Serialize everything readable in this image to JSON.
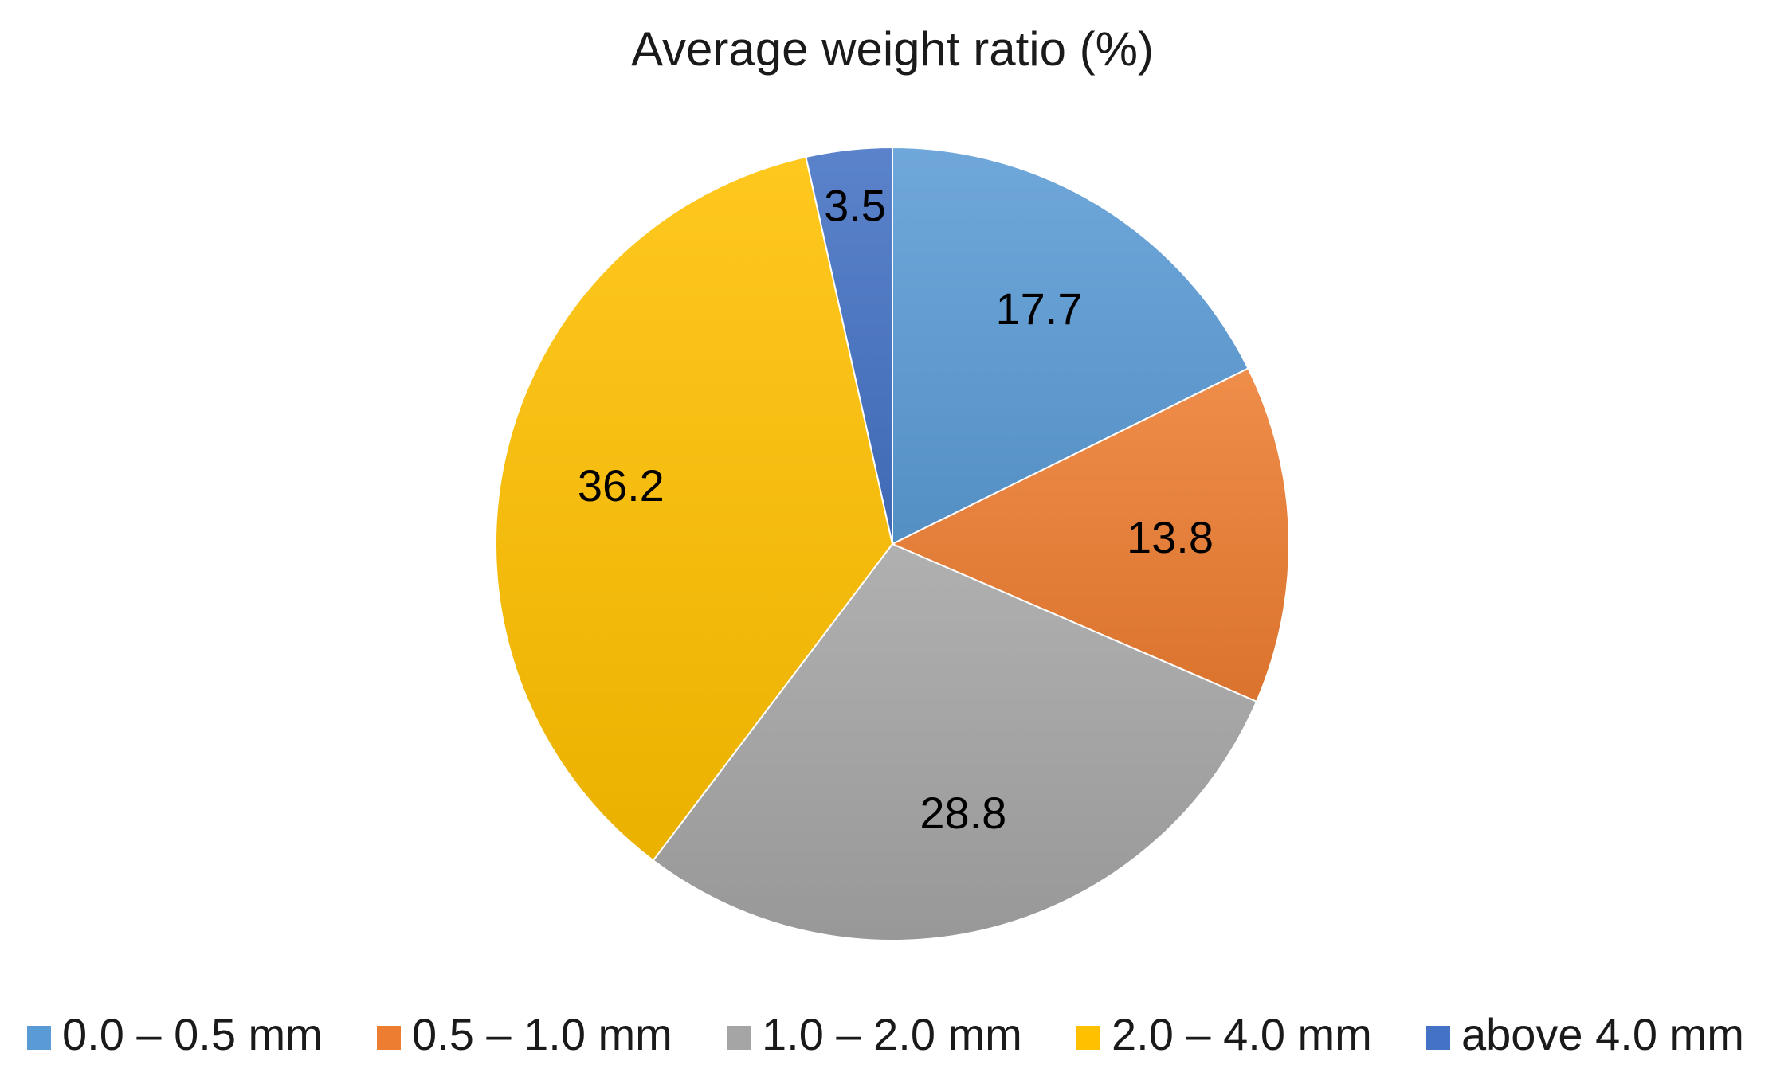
{
  "chart_data": {
    "type": "pie",
    "title": "Average weight ratio (%)",
    "start_angle_deg": 0,
    "direction": "clockwise",
    "slices": [
      {
        "label": "0.0 – 0.5 mm",
        "value": 17.7,
        "color": "#5B9BD5"
      },
      {
        "label": "0.5 – 1.0 mm",
        "value": 13.8,
        "color": "#ED7D31"
      },
      {
        "label": "1.0 – 2.0 mm",
        "value": 28.8,
        "color": "#A5A5A5"
      },
      {
        "label": "2.0 – 4.0 mm",
        "value": 36.2,
        "color": "#FFC000"
      },
      {
        "label": "above 4.0 mm",
        "value": 3.5,
        "color": "#4472C4"
      }
    ],
    "legend_position": "bottom",
    "data_labels": true
  }
}
